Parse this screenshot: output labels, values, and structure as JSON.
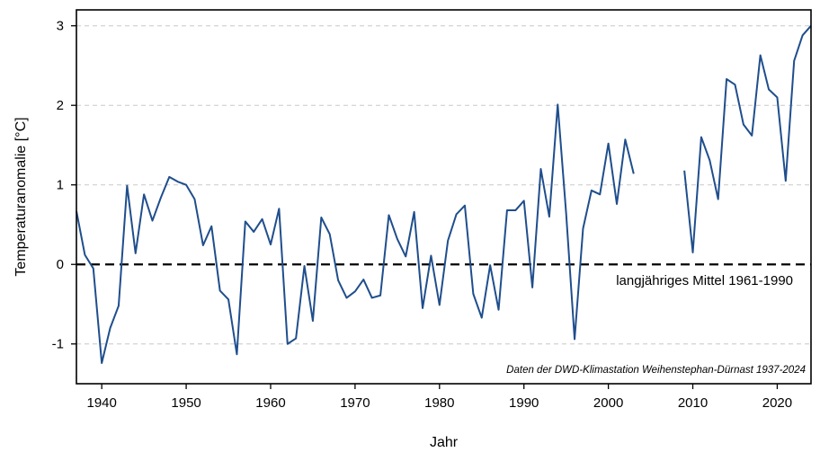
{
  "chart_data": {
    "type": "line",
    "title": "",
    "xlabel": "Jahr",
    "ylabel": "Temperaturanomalie [°C]",
    "xlim": [
      1937,
      2024
    ],
    "ylim": [
      -1.5,
      3.2
    ],
    "x_ticks": [
      1940,
      1950,
      1960,
      1970,
      1980,
      1990,
      2000,
      2010,
      2020
    ],
    "y_ticks": [
      -1,
      0,
      1,
      2,
      3
    ],
    "y_tick_labels": [
      "-1",
      "0",
      "1",
      "2",
      "3"
    ],
    "grid": "horizontal dashed",
    "reference_line": {
      "y": 0,
      "label": "langjähriges Mittel 1961-1990"
    },
    "source_note": "Daten der DWD-Klimastation Weihenstephan-Dürnast 1937-2024",
    "colors": {
      "line": "#1f4e8c",
      "grid": "#c8c8c8",
      "reference": "#000000"
    },
    "series": [
      {
        "x": [
          1937,
          1938,
          1939,
          1940,
          1941,
          1942,
          1943,
          1944,
          1945,
          1946,
          1947,
          1948,
          1949,
          1950,
          1951,
          1952,
          1953,
          1954,
          1955,
          1956,
          1957,
          1958,
          1959,
          1960,
          1961,
          1962,
          1963,
          1964,
          1965,
          1966,
          1967,
          1968,
          1969,
          1970,
          1971,
          1972,
          1973,
          1974,
          1975,
          1976,
          1977,
          1978,
          1979,
          1980,
          1981,
          1982,
          1983,
          1984,
          1985,
          1986,
          1987,
          1988,
          1989,
          1990,
          1991,
          1992,
          1993,
          1994,
          1995,
          1996,
          1997,
          1998,
          1999,
          2000,
          2001,
          2002,
          2003,
          2004,
          2005,
          2006,
          2007,
          2008,
          2009,
          2010,
          2011,
          2012,
          2013,
          2014,
          2015,
          2016,
          2017,
          2018,
          2019,
          2020,
          2021,
          2022,
          2023,
          2024
        ],
        "values": [
          0.67,
          0.12,
          -0.05,
          -1.24,
          -0.8,
          -0.52,
          0.99,
          0.14,
          0.88,
          0.55,
          0.84,
          1.1,
          1.04,
          1.0,
          0.82,
          0.24,
          0.48,
          -0.33,
          -0.44,
          -1.13,
          0.54,
          0.41,
          0.57,
          0.25,
          0.7,
          -1.0,
          -0.93,
          -0.02,
          -0.71,
          0.59,
          0.38,
          -0.2,
          -0.42,
          -0.34,
          -0.19,
          -0.42,
          -0.39,
          0.62,
          0.32,
          0.1,
          0.66,
          -0.55,
          0.11,
          -0.51,
          0.3,
          0.63,
          0.74,
          -0.37,
          -0.67,
          -0.01,
          -0.57,
          0.68,
          0.68,
          0.8,
          -0.29,
          1.2,
          0.6,
          2.01,
          0.64,
          -0.94,
          0.45,
          0.93,
          0.88,
          1.52,
          0.76,
          1.57,
          1.14,
          null,
          null,
          null,
          null,
          null,
          1.18,
          0.15,
          1.6,
          1.31,
          0.82,
          2.33,
          2.26,
          1.76,
          1.62,
          2.63,
          2.2,
          2.1,
          1.05,
          2.56,
          2.88,
          3.0
        ]
      }
    ]
  }
}
